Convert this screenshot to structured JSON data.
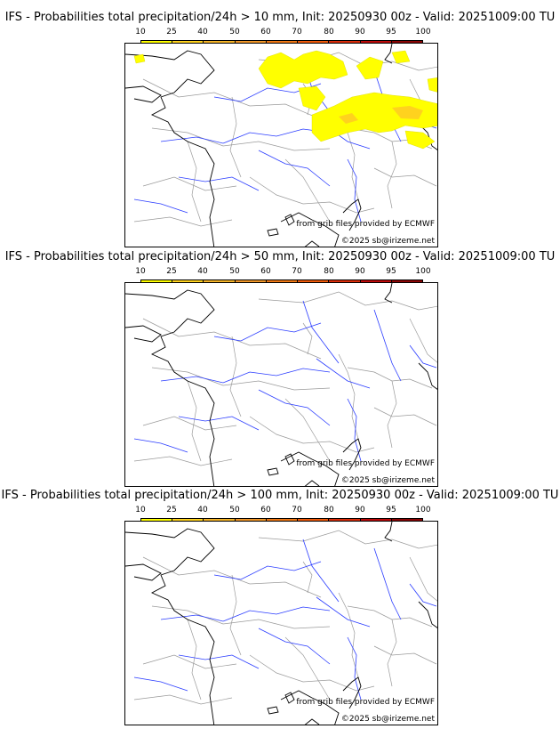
{
  "scale": {
    "labels": [
      "10",
      "25",
      "40",
      "50",
      "60",
      "70",
      "80",
      "90",
      "95",
      "100"
    ],
    "colors": [
      "#ffff00",
      "#ffd21e",
      "#f5b428",
      "#f09628",
      "#f07814",
      "#f05a0a",
      "#dc2d0a",
      "#be0a0a",
      "#8c0505",
      "#5a0000"
    ]
  },
  "panels": [
    {
      "title": "IFS - Probabilities total precipitation/24h > 10 mm, Init: 20250930 00z - Valid: 20251009:00 TU",
      "credit_source": "from grib files provided by ECMWF",
      "credit_copyright": "©2025 sb@irizeme.net",
      "precip_areas": "yes"
    },
    {
      "title": "IFS - Probabilities total precipitation/24h > 50 mm, Init: 20250930 00z - Valid: 20251009:00 TU",
      "credit_source": "from grib files provided by ECMWF",
      "credit_copyright": "©2025 sb@irizeme.net",
      "precip_areas": "no"
    },
    {
      "title": "IFS - Probabilities total precipitation/24h > 100 mm, Init: 20250930 00z - Valid: 20251009:00 TU",
      "credit_source": "from grib files provided by ECMWF",
      "credit_copyright": "©2025 sb@irizeme.net",
      "precip_areas": "no"
    }
  ]
}
